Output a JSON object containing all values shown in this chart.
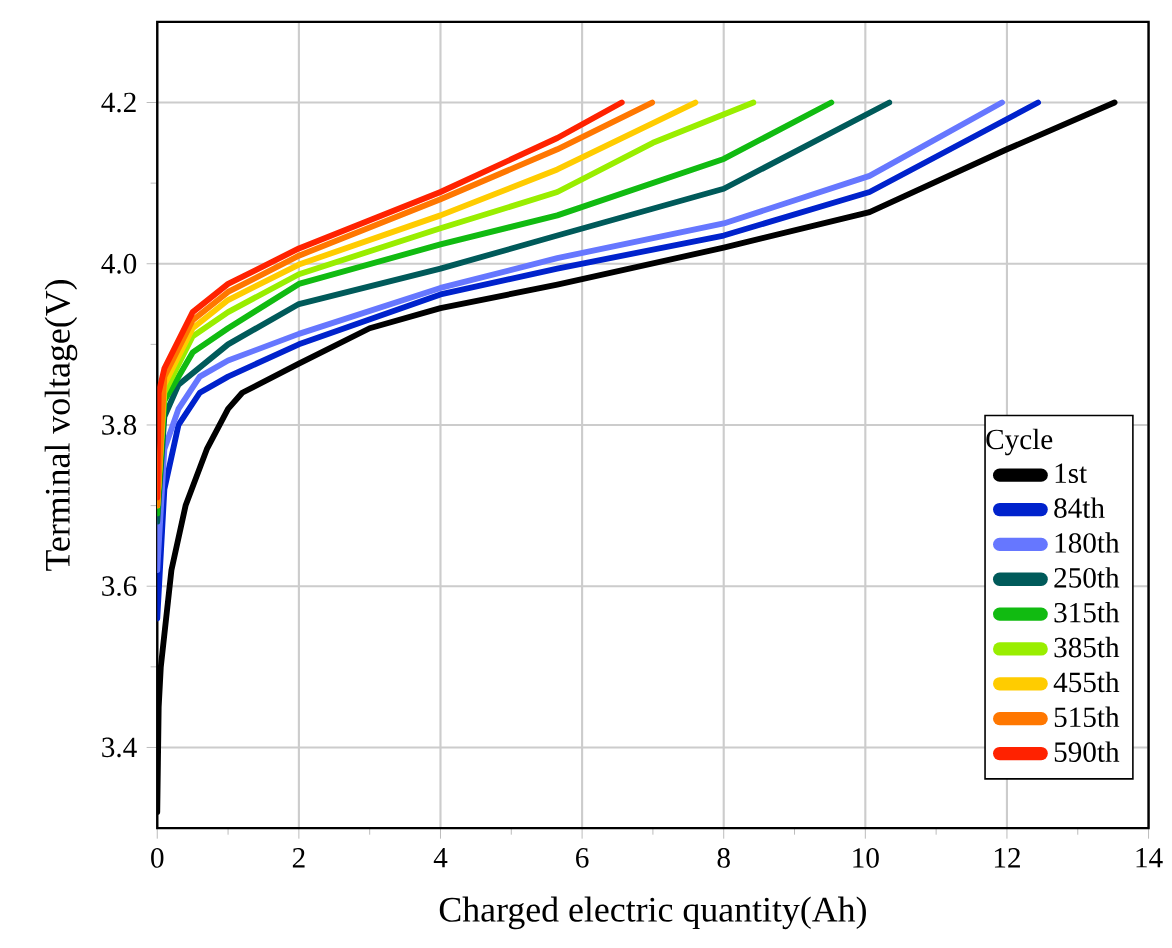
{
  "chart_data": {
    "type": "line",
    "xlabel": "Charged electric quantity(Ah)",
    "ylabel": "Terminal voltage(V)",
    "legend_title": "Cycle",
    "xlim": [
      0,
      14
    ],
    "ylim": [
      3.3,
      4.3
    ],
    "xticks": [
      0,
      2,
      4,
      6,
      8,
      10,
      12,
      14
    ],
    "yticks": [
      {
        "value": 3.4,
        "label": "3.4"
      },
      {
        "value": 3.6,
        "label": "3.6"
      },
      {
        "value": 3.8,
        "label": "3.8"
      },
      {
        "value": 4.0,
        "label": "4.0"
      },
      {
        "value": 4.2,
        "label": "4.2"
      }
    ],
    "grid": true,
    "legend": "bottom right",
    "marker": "none",
    "line_style": "solid",
    "series": [
      {
        "name": "1st",
        "color": "#000000",
        "x": [
          0,
          0.02,
          0.05,
          0.2,
          0.4,
          0.7,
          1.0,
          1.2,
          2,
          3,
          4,
          5.65,
          8,
          10.06,
          12,
          13.52
        ],
        "values": [
          3.32,
          3.45,
          3.5,
          3.62,
          3.7,
          3.77,
          3.82,
          3.84,
          3.876,
          3.92,
          3.945,
          3.974,
          4.02,
          4.064,
          4.142,
          4.2
        ]
      },
      {
        "name": "84th",
        "color": "#0022cc",
        "x": [
          0,
          0.1,
          0.3,
          0.6,
          1,
          2,
          4,
          5.65,
          8,
          10.06,
          12.44
        ],
        "values": [
          3.56,
          3.72,
          3.8,
          3.84,
          3.86,
          3.9,
          3.962,
          3.994,
          4.035,
          4.089,
          4.2
        ]
      },
      {
        "name": "180th",
        "color": "#6677ff",
        "x": [
          0,
          0.1,
          0.3,
          0.6,
          1,
          2,
          4,
          5.65,
          8,
          10.06,
          11.93
        ],
        "values": [
          3.62,
          3.77,
          3.82,
          3.86,
          3.88,
          3.913,
          3.97,
          4.007,
          4.05,
          4.109,
          4.2
        ]
      },
      {
        "name": "250th",
        "color": "#005a5a",
        "x": [
          0,
          0.1,
          0.3,
          1,
          2,
          4,
          5.65,
          8,
          10.34
        ],
        "values": [
          3.68,
          3.81,
          3.85,
          3.9,
          3.95,
          3.994,
          4.035,
          4.093,
          4.2
        ]
      },
      {
        "name": "315th",
        "color": "#11bb11",
        "x": [
          0,
          0.1,
          0.5,
          1,
          2,
          4,
          5.65,
          8,
          9.52
        ],
        "values": [
          3.69,
          3.83,
          3.89,
          3.92,
          3.975,
          4.024,
          4.06,
          4.13,
          4.2
        ]
      },
      {
        "name": "385th",
        "color": "#99ee00",
        "x": [
          0,
          0.1,
          0.5,
          1,
          2,
          4,
          5.65,
          7,
          8.42
        ],
        "values": [
          3.7,
          3.84,
          3.91,
          3.94,
          3.987,
          4.044,
          4.089,
          4.15,
          4.2
        ]
      },
      {
        "name": "455th",
        "color": "#ffcc00",
        "x": [
          0,
          0.1,
          0.5,
          1,
          2,
          4,
          5.65,
          7.6
        ],
        "values": [
          3.7,
          3.85,
          3.92,
          3.955,
          3.999,
          4.06,
          4.117,
          4.2
        ]
      },
      {
        "name": "515th",
        "color": "#ff7700",
        "x": [
          0,
          0.1,
          0.5,
          1,
          2,
          4,
          5.65,
          6.99
        ],
        "values": [
          3.7,
          3.86,
          3.93,
          3.965,
          4.01,
          4.08,
          4.142,
          4.2
        ]
      },
      {
        "name": "590th",
        "color": "#ff2200",
        "x": [
          0,
          0.02,
          0.1,
          0.5,
          1,
          2,
          4,
          5.65,
          6.56
        ],
        "values": [
          3.71,
          3.84,
          3.87,
          3.94,
          3.975,
          4.019,
          4.089,
          4.156,
          4.2
        ]
      }
    ]
  }
}
